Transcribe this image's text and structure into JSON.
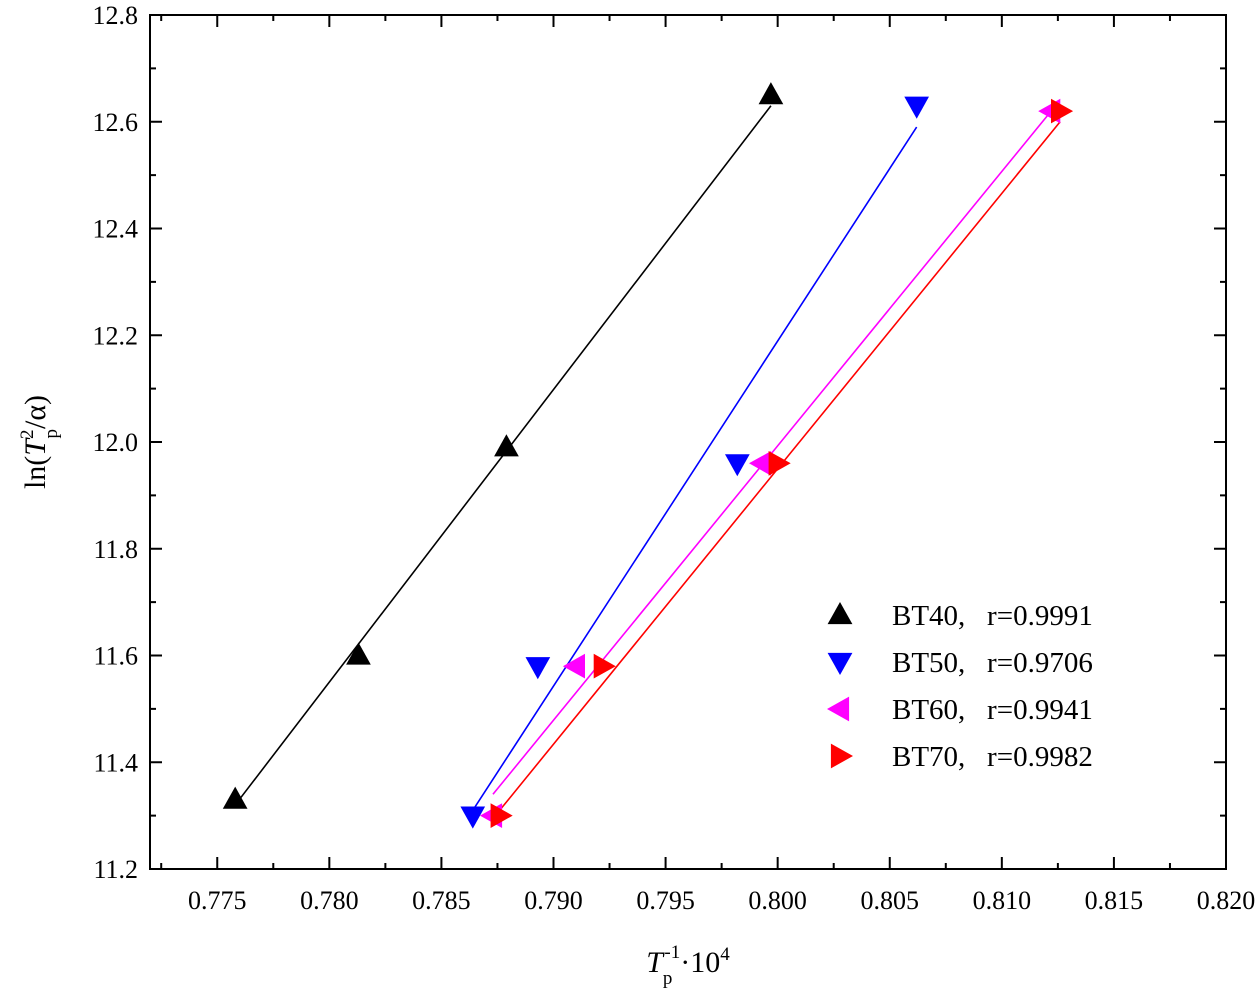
{
  "chart_data": {
    "type": "scatter",
    "title": "",
    "xlabel": {
      "base": "T",
      "subscript": "p",
      "superscript": "-1",
      "suffix": "·10",
      "suffix_superscript": "4"
    },
    "ylabel": {
      "prefix": "ln(",
      "base": "T",
      "superscript": "2",
      "subscript": "p",
      "suffix": "/α)"
    },
    "xlim": [
      0.772,
      0.82
    ],
    "ylim": [
      11.2,
      12.8
    ],
    "xticks": [
      "0.775",
      "0.780",
      "0.785",
      "0.790",
      "0.795",
      "0.800",
      "0.805",
      "0.810",
      "0.815",
      "0.820"
    ],
    "yticks": [
      "11.2",
      "11.4",
      "11.6",
      "11.8",
      "12.0",
      "12.2",
      "12.4",
      "12.6",
      "12.8"
    ],
    "grid": false,
    "legend_position": "bottom-right",
    "series": [
      {
        "name": "BT40",
        "label": "BT40,   r=0.9991",
        "color": "#000000",
        "marker": "triangle-up",
        "x": [
          0.7758,
          0.7813,
          0.7879,
          0.7997
        ],
        "y": [
          11.33,
          11.6,
          11.99,
          12.65
        ],
        "fit": {
          "x": [
            0.7758,
            0.7997
          ],
          "y": [
            11.32,
            12.63
          ]
        }
      },
      {
        "name": "BT50",
        "label": "BT50,   r=0.9706",
        "color": "#0000ff",
        "marker": "triangle-down",
        "x": [
          0.7864,
          0.7893,
          0.7982,
          0.8062
        ],
        "y": [
          11.3,
          11.58,
          11.96,
          12.63
        ],
        "fit": {
          "x": [
            0.7864,
            0.8062
          ],
          "y": [
            11.31,
            12.59
          ]
        }
      },
      {
        "name": "BT60",
        "label": "BT60,   r=0.9941",
        "color": "#ff00ff",
        "marker": "triangle-left",
        "x": [
          0.7873,
          0.791,
          0.7993,
          0.8122
        ],
        "y": [
          11.3,
          11.58,
          11.96,
          12.62
        ],
        "fit": {
          "x": [
            0.7873,
            0.8122
          ],
          "y": [
            11.34,
            12.62
          ]
        }
      },
      {
        "name": "BT70",
        "label": "BT70,   r=0.9982",
        "color": "#ff0000",
        "marker": "triangle-right",
        "x": [
          0.7876,
          0.7922,
          0.8,
          0.8126
        ],
        "y": [
          11.3,
          11.58,
          11.96,
          12.62
        ],
        "fit": {
          "x": [
            0.7876,
            0.8126
          ],
          "y": [
            11.31,
            12.6
          ]
        }
      }
    ]
  }
}
